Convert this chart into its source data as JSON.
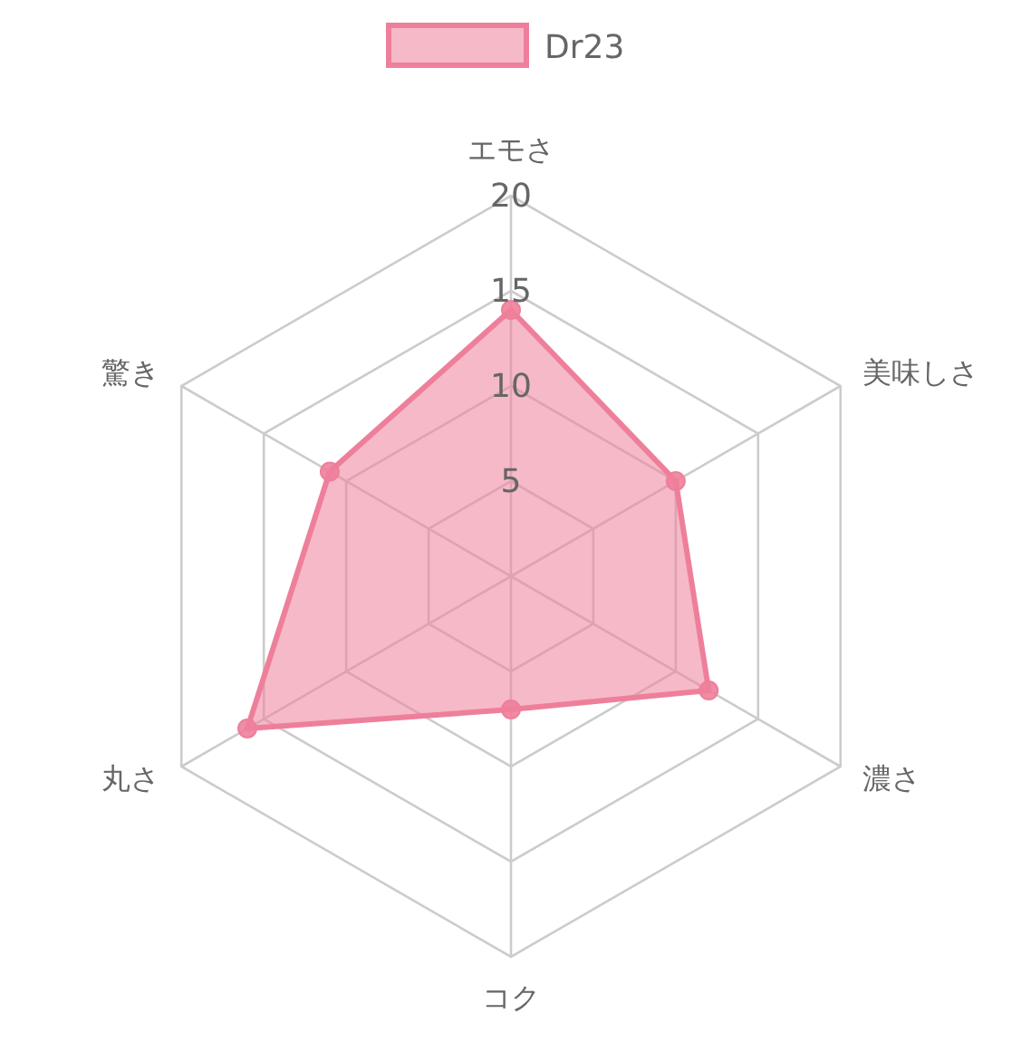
{
  "chart_data": {
    "type": "radar",
    "categories": [
      "エモさ",
      "美味しさ",
      "濃さ",
      "コク",
      "丸さ",
      "驚き"
    ],
    "series": [
      {
        "name": "Dr23",
        "color": "#ee7f9a",
        "values": [
          14,
          10,
          12,
          7,
          16,
          11
        ]
      }
    ],
    "ylim": [
      0,
      20
    ],
    "yticks": [
      5,
      10,
      15,
      20
    ],
    "grid": true,
    "legend": "top",
    "marker": "circle"
  }
}
